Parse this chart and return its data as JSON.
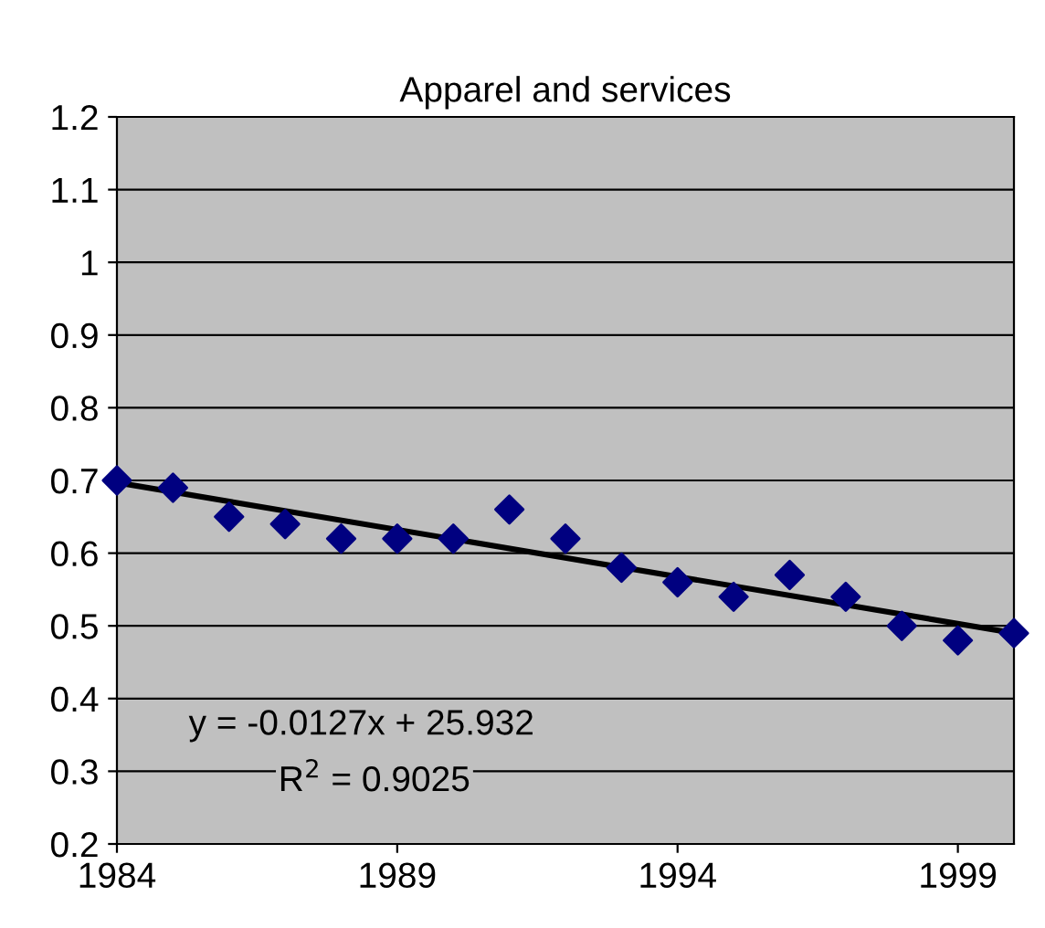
{
  "chart_data": {
    "type": "scatter",
    "title": "Apparel and services",
    "x": [
      1984,
      1985,
      1986,
      1987,
      1988,
      1989,
      1990,
      1991,
      1992,
      1993,
      1994,
      1995,
      1996,
      1997,
      1998,
      1999,
      2000
    ],
    "series": [
      {
        "color": "#000080",
        "marker": "diamond",
        "values": [
          0.7,
          0.69,
          0.65,
          0.64,
          0.62,
          0.62,
          0.62,
          0.66,
          0.62,
          0.58,
          0.56,
          0.54,
          0.57,
          0.54,
          0.5,
          0.48,
          0.49
        ]
      },
      {
        "type": "line",
        "color": "#000000",
        "marker": "none",
        "line_style": "solid",
        "x": [
          1984,
          2000
        ],
        "values": [
          0.697,
          0.49
        ]
      }
    ],
    "annotations": [
      "y = -0.0127x + 25.932",
      "R$^{2}$ = 0.9025"
    ],
    "xlim": [
      1984,
      2000
    ],
    "xticks": [
      1984,
      1989,
      1994,
      1999
    ],
    "ylim": [
      0.2,
      1.2
    ],
    "yticks": [
      0.2,
      0.3,
      0.4,
      0.5,
      0.6,
      0.7,
      0.8,
      0.9,
      1,
      1.1,
      1.2
    ],
    "grid": "y",
    "legend": false
  }
}
